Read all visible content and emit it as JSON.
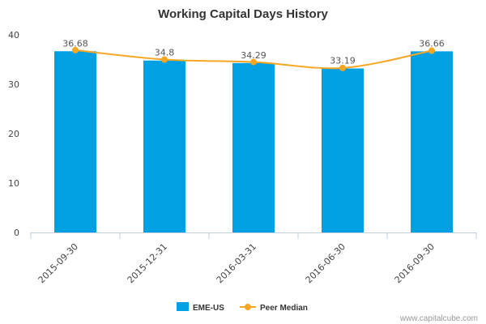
{
  "chart_data": {
    "type": "bar",
    "title": "Working Capital Days History",
    "categories": [
      "2015-09-30",
      "2015-12-31",
      "2016-03-31",
      "2016-06-30",
      "2016-09-30"
    ],
    "series": [
      {
        "name": "EME-US",
        "kind": "bar",
        "color": "#00a0e3",
        "values": [
          36.68,
          34.8,
          34.29,
          33.19,
          36.66
        ]
      },
      {
        "name": "Peer Median",
        "kind": "line",
        "color": "#f5a623",
        "values": [
          36.9,
          35.0,
          34.5,
          33.3,
          36.8
        ]
      }
    ],
    "data_labels": [
      "36.68",
      "34.8",
      "34.29",
      "33.19",
      "36.66"
    ],
    "ylim": [
      0,
      40
    ],
    "yticks": [
      0,
      10,
      20,
      30,
      40
    ],
    "grid": false,
    "legend_position": "bottom-center",
    "credit": "www.capitalcube.com"
  }
}
